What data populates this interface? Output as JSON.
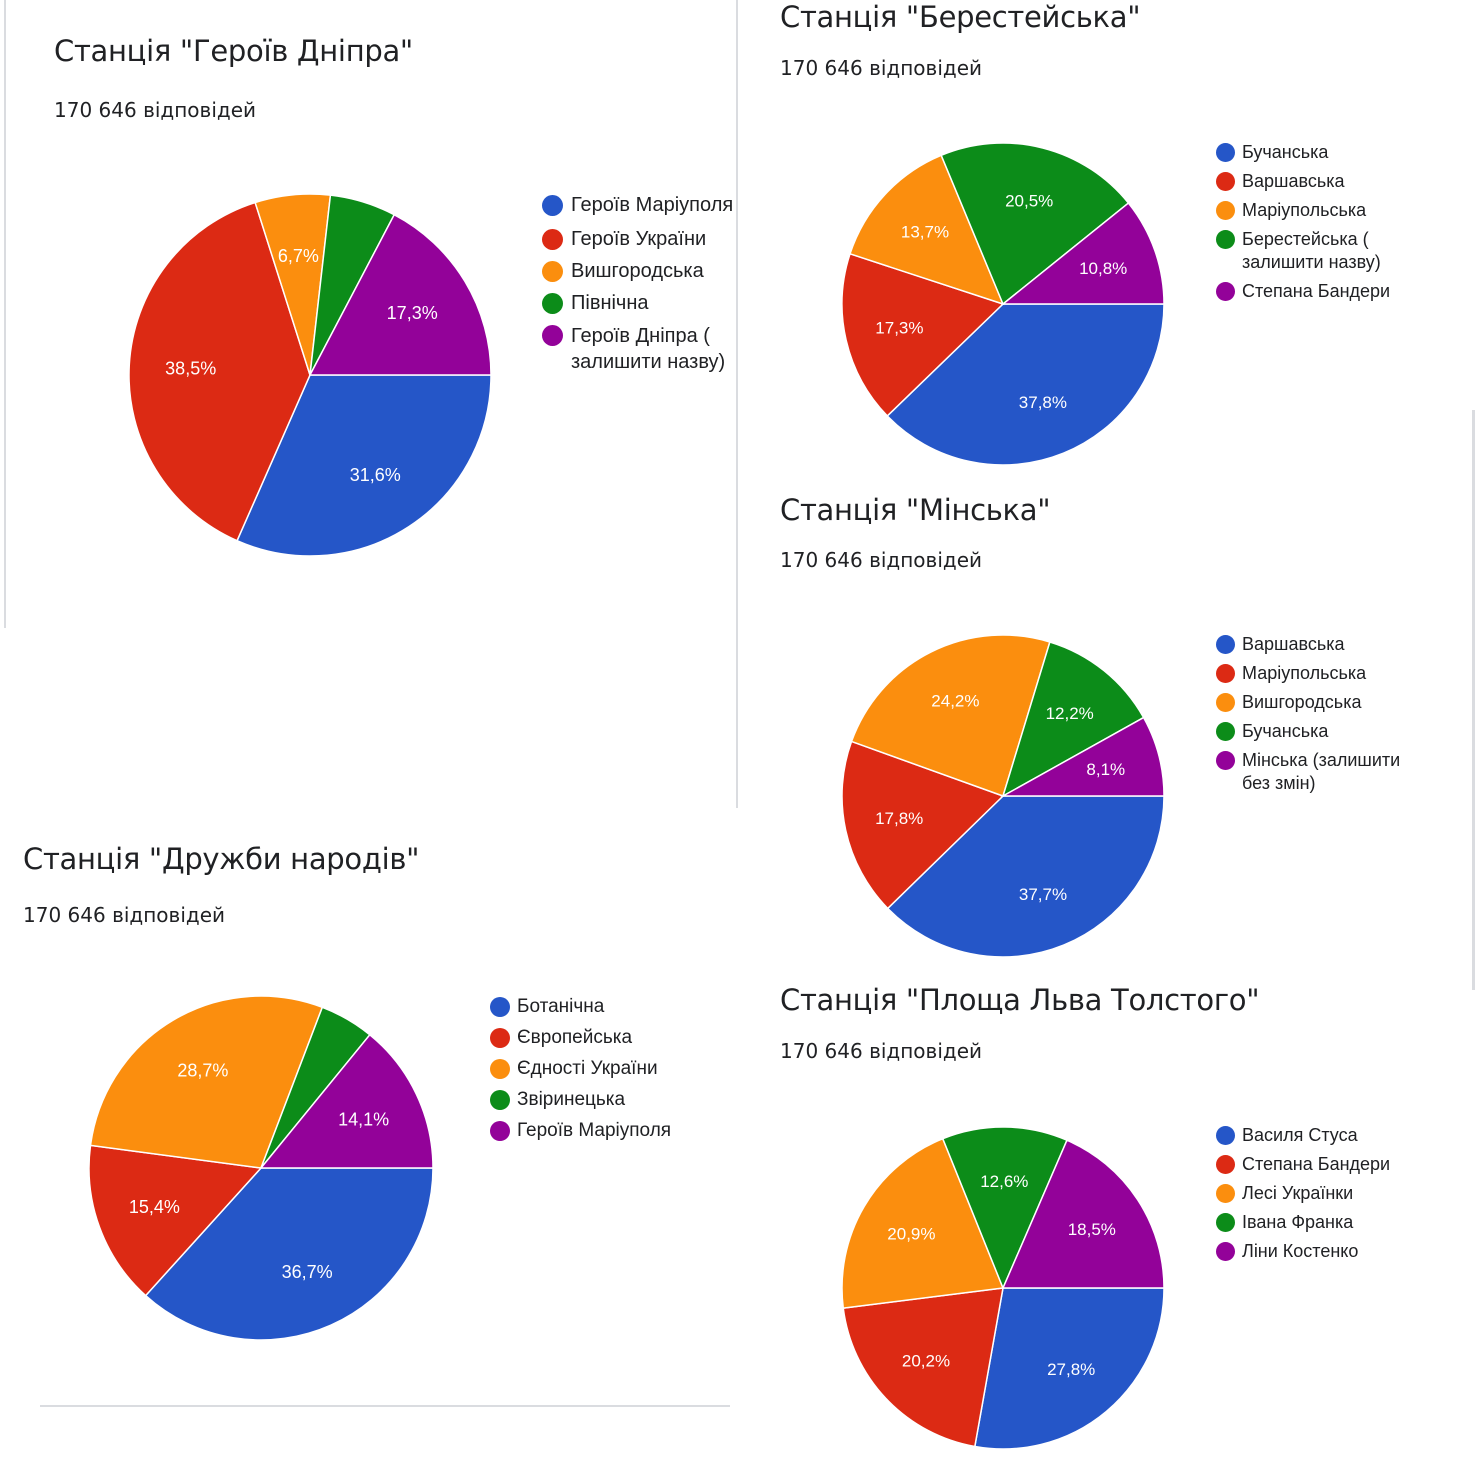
{
  "response_count": "170 646 відповідей",
  "colors": {
    "blue": "#2556c8",
    "red": "#dc2a14",
    "orange": "#fb8e0e",
    "green": "#0c8c19",
    "purple": "#930299",
    "text": "#202124",
    "slice_label": "#ffffff"
  },
  "chart_data": [
    {
      "type": "pie",
      "title": "Станція \"Героїв Дніпра\"",
      "subtitle": "170 646 відповідей",
      "categories": [
        "Героїв Маріуполя",
        "Героїв України",
        "Вишгородська",
        "Північна",
        "Героїв Дніпра (\nзалишити назву)"
      ],
      "values": [
        31.6,
        38.5,
        6.7,
        5.9,
        17.3
      ],
      "labels": [
        "31,6%",
        "38,5%",
        "6,7%",
        "",
        "17,3%"
      ],
      "legend": "right"
    },
    {
      "type": "pie",
      "title": "Станція \"Берестейська\"",
      "subtitle": "170 646 відповідей",
      "categories": [
        "Бучанська",
        "Варшавська",
        "Маріупольська",
        "Берестейська (\nзалишити назву)",
        "Степана Бандери"
      ],
      "values": [
        37.8,
        17.3,
        13.7,
        20.5,
        10.8
      ],
      "labels": [
        "37,8%",
        "17,3%",
        "13,7%",
        "20,5%",
        "10,8%"
      ],
      "legend": "right"
    },
    {
      "type": "pie",
      "title": "Станція \"Мінська\"",
      "subtitle": "170 646 відповідей",
      "categories": [
        "Варшавська",
        "Маріупольська",
        "Вишгородська",
        "Бучанська",
        "Мінська (залишити\nбез змін)"
      ],
      "values": [
        37.7,
        17.8,
        24.2,
        12.2,
        8.1
      ],
      "labels": [
        "37,7%",
        "17,8%",
        "24,2%",
        "12,2%",
        "8,1%"
      ],
      "legend": "right"
    },
    {
      "type": "pie",
      "title": "Станція \"Дружби народів\"",
      "subtitle": "170 646 відповідей",
      "categories": [
        "Ботанічна",
        "Європейська",
        "Єдності України",
        "Звіринецька",
        "Героїв Маріуполя"
      ],
      "values": [
        36.7,
        15.4,
        28.7,
        5.1,
        14.1
      ],
      "labels": [
        "36,7%",
        "15,4%",
        "28,7%",
        "",
        "14,1%"
      ],
      "legend": "right"
    },
    {
      "type": "pie",
      "title": "Станція \"Площа Льва Толстого\"",
      "subtitle": "170 646 відповідей",
      "categories": [
        "Василя Стуса",
        "Степана Бандери",
        "Лесі Українки",
        "Івана Франка",
        "Ліни Костенко"
      ],
      "values": [
        27.8,
        20.2,
        20.9,
        12.6,
        18.5
      ],
      "labels": [
        "27,8%",
        "20,2%",
        "20,9%",
        "12,6%",
        "18,5%"
      ],
      "legend": "right"
    }
  ]
}
